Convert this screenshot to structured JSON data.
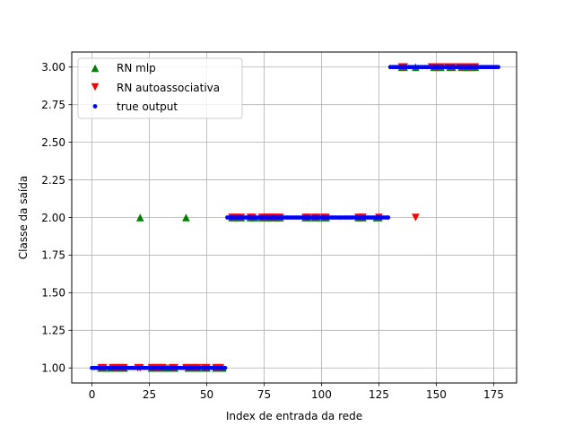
{
  "chart_data": {
    "type": "scatter",
    "xlabel": "Index de entrada da rede",
    "ylabel": "Classe da saída",
    "xlim": [
      -8.8,
      185
    ],
    "ylim": [
      0.9,
      3.1
    ],
    "xticks": [
      0,
      25,
      50,
      75,
      100,
      125,
      150,
      175
    ],
    "yticks": [
      1.0,
      1.25,
      1.5,
      1.75,
      2.0,
      2.25,
      2.5,
      2.75,
      3.0
    ],
    "xtick_labels": [
      "0",
      "25",
      "50",
      "75",
      "100",
      "125",
      "150",
      "175"
    ],
    "ytick_labels": [
      "1.00",
      "1.25",
      "1.50",
      "1.75",
      "2.00",
      "2.25",
      "2.50",
      "2.75",
      "3.00"
    ],
    "grid": true,
    "legend_position": "top-left",
    "series": [
      {
        "name": "RN mlp",
        "marker": "triangle-up",
        "color": "#008000",
        "points": [
          [
            4,
            1
          ],
          [
            5,
            1
          ],
          [
            8,
            1
          ],
          [
            9,
            1
          ],
          [
            10,
            1
          ],
          [
            11,
            1
          ],
          [
            12,
            1
          ],
          [
            13,
            1
          ],
          [
            14,
            1
          ],
          [
            21,
            2
          ],
          [
            26,
            1
          ],
          [
            27,
            1
          ],
          [
            28,
            1
          ],
          [
            29,
            1
          ],
          [
            30,
            1
          ],
          [
            31,
            1
          ],
          [
            33,
            1
          ],
          [
            34,
            1
          ],
          [
            35,
            1
          ],
          [
            36,
            1
          ],
          [
            41,
            2
          ],
          [
            42,
            1
          ],
          [
            44,
            1
          ],
          [
            45,
            1
          ],
          [
            46,
            1
          ],
          [
            49,
            1
          ],
          [
            50,
            1
          ],
          [
            54,
            1
          ],
          [
            55,
            1
          ],
          [
            56,
            1
          ],
          [
            57,
            1
          ],
          [
            61,
            2
          ],
          [
            62,
            2
          ],
          [
            64,
            2
          ],
          [
            65,
            2
          ],
          [
            69,
            2
          ],
          [
            70,
            2
          ],
          [
            71,
            2
          ],
          [
            74,
            2
          ],
          [
            75,
            2
          ],
          [
            76,
            2
          ],
          [
            77,
            2
          ],
          [
            78,
            2
          ],
          [
            79,
            2
          ],
          [
            80,
            2
          ],
          [
            81,
            2
          ],
          [
            82,
            2
          ],
          [
            93,
            2
          ],
          [
            94,
            2
          ],
          [
            97,
            2
          ],
          [
            98,
            2
          ],
          [
            101,
            2
          ],
          [
            102,
            2
          ],
          [
            116,
            2
          ],
          [
            117,
            2
          ],
          [
            118,
            2
          ],
          [
            124,
            2
          ],
          [
            125,
            2
          ],
          [
            135,
            3
          ],
          [
            136,
            3
          ],
          [
            141,
            3
          ],
          [
            149,
            3
          ],
          [
            150,
            3
          ],
          [
            151,
            3
          ],
          [
            152,
            3
          ],
          [
            156,
            3
          ],
          [
            157,
            3
          ],
          [
            161,
            3
          ],
          [
            162,
            3
          ],
          [
            163,
            3
          ],
          [
            164,
            3
          ],
          [
            165,
            3
          ],
          [
            166,
            3
          ],
          [
            167,
            3
          ]
        ]
      },
      {
        "name": "RN autoassociativa",
        "marker": "triangle-down",
        "color": "#ff0000",
        "points": [
          [
            4,
            1
          ],
          [
            5,
            1
          ],
          [
            9,
            1
          ],
          [
            10,
            1
          ],
          [
            11,
            1
          ],
          [
            12,
            1
          ],
          [
            13,
            1
          ],
          [
            14,
            1
          ],
          [
            20,
            1
          ],
          [
            21,
            1
          ],
          [
            26,
            1
          ],
          [
            27,
            1
          ],
          [
            28,
            1
          ],
          [
            29,
            1
          ],
          [
            30,
            1
          ],
          [
            31,
            1
          ],
          [
            35,
            1
          ],
          [
            36,
            1
          ],
          [
            41,
            1
          ],
          [
            42,
            1
          ],
          [
            44,
            1
          ],
          [
            45,
            1
          ],
          [
            46,
            1
          ],
          [
            49,
            1
          ],
          [
            50,
            1
          ],
          [
            54,
            1
          ],
          [
            55,
            1
          ],
          [
            56,
            1
          ],
          [
            61,
            2
          ],
          [
            62,
            2
          ],
          [
            64,
            2
          ],
          [
            65,
            2
          ],
          [
            69,
            2
          ],
          [
            70,
            2
          ],
          [
            74,
            2
          ],
          [
            75,
            2
          ],
          [
            76,
            2
          ],
          [
            77,
            2
          ],
          [
            78,
            2
          ],
          [
            79,
            2
          ],
          [
            80,
            2
          ],
          [
            81,
            2
          ],
          [
            82,
            2
          ],
          [
            93,
            2
          ],
          [
            94,
            2
          ],
          [
            97,
            2
          ],
          [
            98,
            2
          ],
          [
            101,
            2
          ],
          [
            102,
            2
          ],
          [
            116,
            2
          ],
          [
            117,
            2
          ],
          [
            118,
            2
          ],
          [
            125,
            2
          ],
          [
            141,
            2
          ],
          [
            135,
            3
          ],
          [
            136,
            3
          ],
          [
            148,
            3
          ],
          [
            149,
            3
          ],
          [
            150,
            3
          ],
          [
            151,
            3
          ],
          [
            152,
            3
          ],
          [
            155,
            3
          ],
          [
            156,
            3
          ],
          [
            157,
            3
          ],
          [
            160,
            3
          ],
          [
            161,
            3
          ],
          [
            162,
            3
          ],
          [
            163,
            3
          ],
          [
            164,
            3
          ],
          [
            165,
            3
          ],
          [
            166,
            3
          ],
          [
            167,
            3
          ]
        ]
      },
      {
        "name": "true output",
        "marker": "dot",
        "color": "#0000ff",
        "ranges": [
          {
            "from": 0,
            "to": 58,
            "y": 1
          },
          {
            "from": 59,
            "to": 129,
            "y": 2
          },
          {
            "from": 130,
            "to": 177,
            "y": 3
          }
        ]
      }
    ]
  }
}
